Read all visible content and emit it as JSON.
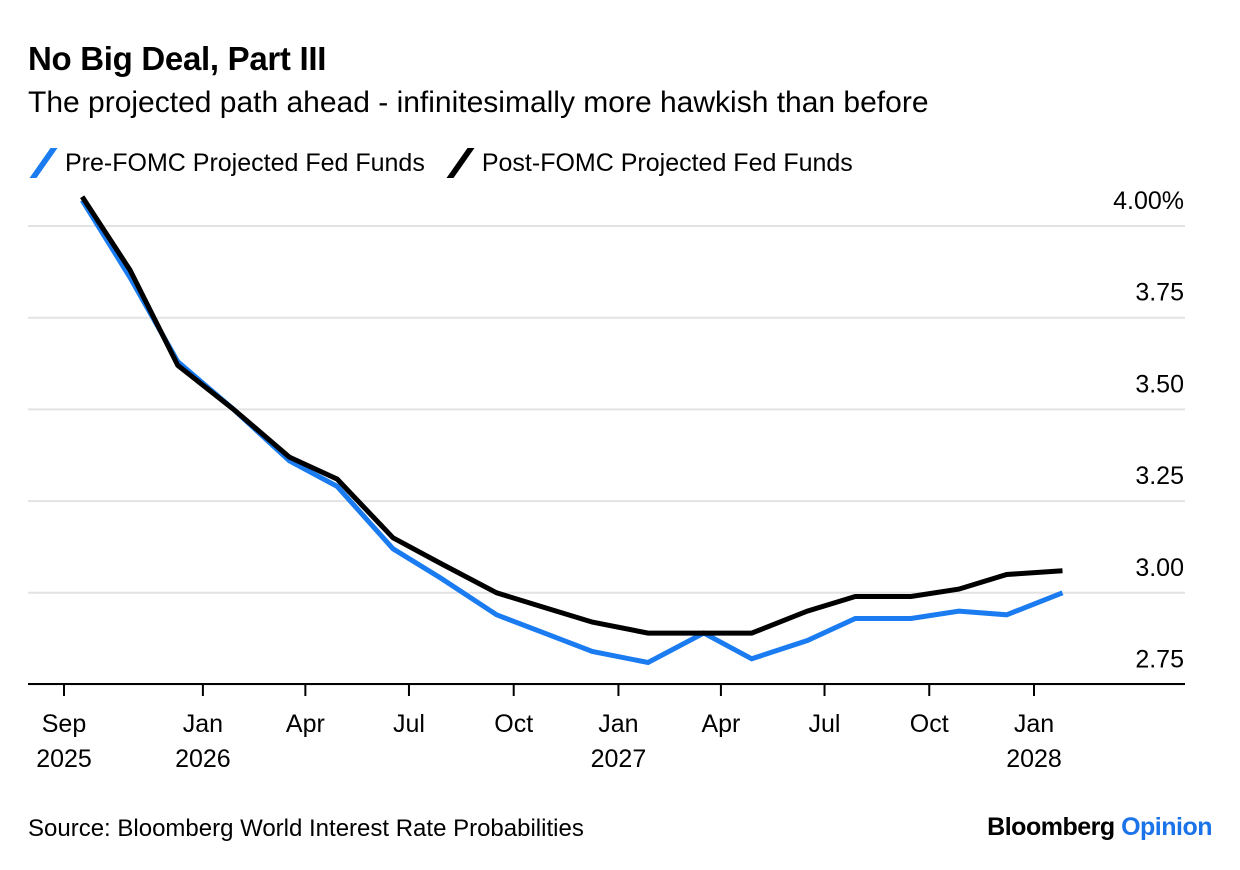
{
  "colors": {
    "pre": "#1a7cf0",
    "post": "#000000",
    "grid": "#e3e3e3",
    "axis": "#000000",
    "brand_accent": "#1a73e8"
  },
  "chart_data": {
    "type": "line",
    "title": "No Big Deal, Part III",
    "subtitle": "The projected path ahead - infinitesimally more hawkish than before",
    "x": [
      "2025-09-17",
      "2025-10-29",
      "2025-12-10",
      "2026-01-28",
      "2026-03-18",
      "2026-04-29",
      "2026-06-17",
      "2026-07-29",
      "2026-09-16",
      "2026-10-28",
      "2026-12-09",
      "2027-01-27",
      "2027-03-17",
      "2027-04-28",
      "2027-06-16",
      "2027-07-28",
      "2027-09-15",
      "2027-10-27",
      "2027-12-08",
      "2028-01-26"
    ],
    "series": [
      {
        "name": "Pre-FOMC Projected Fed Funds",
        "color": "#1a7cf0",
        "values": [
          4.07,
          3.86,
          3.63,
          3.5,
          3.36,
          3.29,
          3.12,
          3.04,
          2.94,
          2.89,
          2.84,
          2.81,
          2.89,
          2.82,
          2.87,
          2.93,
          2.93,
          2.95,
          2.94,
          3.0
        ]
      },
      {
        "name": "Post-FOMC Projected Fed Funds",
        "color": "#000000",
        "values": [
          4.08,
          3.88,
          3.62,
          3.5,
          3.37,
          3.31,
          3.15,
          3.08,
          3.0,
          2.96,
          2.92,
          2.89,
          2.89,
          2.89,
          2.95,
          2.99,
          2.99,
          3.01,
          3.05,
          3.06
        ]
      }
    ],
    "ylim": [
      2.7,
      4.08
    ],
    "yticks": [
      4.0,
      3.75,
      3.5,
      3.25,
      3.0,
      2.75
    ],
    "ytick_labels": [
      "4.00%",
      "3.75",
      "3.50",
      "3.25",
      "3.00",
      "2.75"
    ],
    "x_ticks": [
      {
        "date": "2025-09-01",
        "line1": "Sep",
        "line2": "2025"
      },
      {
        "date": "2026-01-01",
        "line1": "Jan",
        "line2": "2026"
      },
      {
        "date": "2026-04-01",
        "line1": "Apr",
        "line2": ""
      },
      {
        "date": "2026-07-01",
        "line1": "Jul",
        "line2": ""
      },
      {
        "date": "2026-10-01",
        "line1": "Oct",
        "line2": ""
      },
      {
        "date": "2027-01-01",
        "line1": "Jan",
        "line2": "2027"
      },
      {
        "date": "2027-04-01",
        "line1": "Apr",
        "line2": ""
      },
      {
        "date": "2027-07-01",
        "line1": "Jul",
        "line2": ""
      },
      {
        "date": "2027-10-01",
        "line1": "Oct",
        "line2": ""
      },
      {
        "date": "2028-01-01",
        "line1": "Jan",
        "line2": "2028"
      }
    ],
    "grid": true,
    "legend_position": "top-left",
    "y_axis_side": "right"
  },
  "footer": {
    "source": "Source: Bloomberg World Interest Rate Probabilities",
    "brand_main": "Bloomberg",
    "brand_accent": "Opinion"
  }
}
